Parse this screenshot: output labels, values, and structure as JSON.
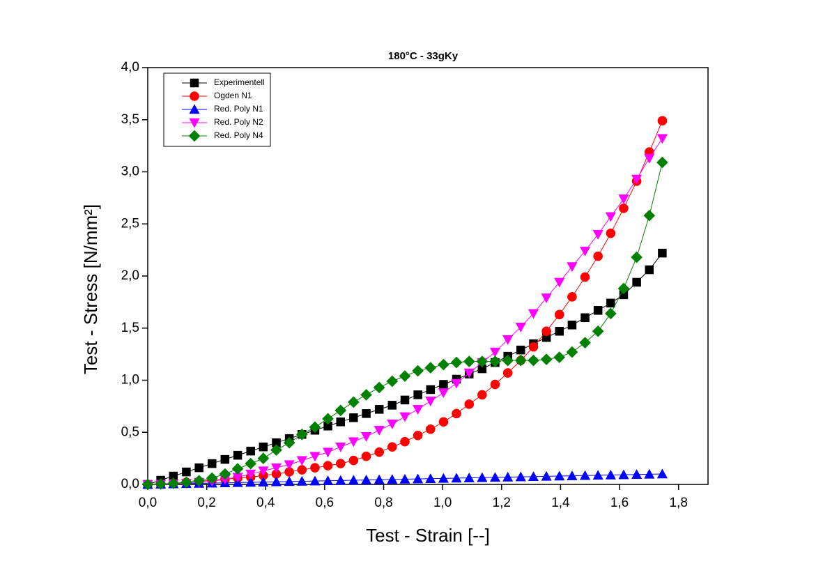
{
  "chart_data": {
    "type": "line",
    "title": "180°C - 33gKy",
    "x_label": "Test - Strain [--]",
    "y_label": "Test - Stress [N/mm²]",
    "xlim": [
      0,
      1.9
    ],
    "ylim": [
      0,
      4.0
    ],
    "xticks": [
      {
        "value": 0,
        "label": "0,0"
      },
      {
        "value": 0.2,
        "label": "0,2"
      },
      {
        "value": 0.4,
        "label": "0,4"
      },
      {
        "value": 0.6,
        "label": "0,6"
      },
      {
        "value": 0.8,
        "label": "0,8"
      },
      {
        "value": 1.0,
        "label": "1,0"
      },
      {
        "value": 1.2,
        "label": "1,2"
      },
      {
        "value": 1.4,
        "label": "1,4"
      },
      {
        "value": 1.6,
        "label": "1,6"
      },
      {
        "value": 1.8,
        "label": "1,8"
      }
    ],
    "yticks": [
      {
        "value": 0,
        "label": "0,0"
      },
      {
        "value": 0.5,
        "label": "0,5"
      },
      {
        "value": 1.0,
        "label": "1,0"
      },
      {
        "value": 1.5,
        "label": "1,5"
      },
      {
        "value": 2.0,
        "label": "2,0"
      },
      {
        "value": 2.5,
        "label": "2,5"
      },
      {
        "value": 3.0,
        "label": "3,0"
      },
      {
        "value": 3.5,
        "label": "3,5"
      },
      {
        "value": 4.0,
        "label": "4,0"
      }
    ],
    "legend": "upper left",
    "x": [
      0,
      0.044,
      0.087,
      0.131,
      0.174,
      0.218,
      0.262,
      0.305,
      0.349,
      0.392,
      0.436,
      0.48,
      0.523,
      0.567,
      0.611,
      0.654,
      0.698,
      0.741,
      0.785,
      0.829,
      0.872,
      0.916,
      0.959,
      1.003,
      1.047,
      1.09,
      1.134,
      1.178,
      1.221,
      1.265,
      1.308,
      1.352,
      1.396,
      1.439,
      1.483,
      1.527,
      1.57,
      1.614,
      1.658,
      1.701,
      1.745
    ],
    "series": [
      {
        "name": "Experimentell",
        "color": "#000000",
        "marker": "square",
        "values": [
          0,
          0.04,
          0.08,
          0.12,
          0.16,
          0.2,
          0.24,
          0.28,
          0.32,
          0.36,
          0.4,
          0.44,
          0.48,
          0.52,
          0.56,
          0.6,
          0.64,
          0.68,
          0.72,
          0.76,
          0.81,
          0.86,
          0.91,
          0.96,
          1.01,
          1.06,
          1.11,
          1.17,
          1.23,
          1.29,
          1.35,
          1.41,
          1.47,
          1.53,
          1.6,
          1.67,
          1.74,
          1.82,
          1.94,
          2.06,
          2.22
        ]
      },
      {
        "name": "Ogden N1",
        "color": "#ff0000",
        "marker": "circle",
        "values": [
          0,
          0.003,
          0.01,
          0.02,
          0.03,
          0.04,
          0.05,
          0.06,
          0.07,
          0.085,
          0.1,
          0.12,
          0.14,
          0.16,
          0.18,
          0.2,
          0.23,
          0.27,
          0.31,
          0.36,
          0.41,
          0.47,
          0.53,
          0.6,
          0.68,
          0.77,
          0.86,
          0.96,
          1.07,
          1.19,
          1.32,
          1.47,
          1.63,
          1.8,
          1.99,
          2.19,
          2.41,
          2.65,
          2.91,
          3.19,
          3.49
        ]
      },
      {
        "name": "Red. Poly N1",
        "color": "#0000ff",
        "marker": "triangle-up",
        "values": [
          0,
          0.0025,
          0.005,
          0.0075,
          0.01,
          0.0125,
          0.015,
          0.0175,
          0.02,
          0.0225,
          0.025,
          0.0275,
          0.03,
          0.0325,
          0.035,
          0.0375,
          0.04,
          0.0425,
          0.045,
          0.0475,
          0.05,
          0.0525,
          0.055,
          0.0575,
          0.06,
          0.0625,
          0.065,
          0.0675,
          0.07,
          0.0725,
          0.075,
          0.0775,
          0.08,
          0.0825,
          0.085,
          0.0875,
          0.09,
          0.0925,
          0.095,
          0.0975,
          0.1
        ]
      },
      {
        "name": "Red. Poly N2",
        "color": "#ff00ff",
        "marker": "triangle-down",
        "values": [
          0,
          0.002,
          0.005,
          0.01,
          0.02,
          0.03,
          0.05,
          0.07,
          0.1,
          0.13,
          0.16,
          0.19,
          0.23,
          0.27,
          0.31,
          0.36,
          0.41,
          0.46,
          0.52,
          0.58,
          0.65,
          0.72,
          0.8,
          0.88,
          0.97,
          1.07,
          1.17,
          1.27,
          1.39,
          1.51,
          1.64,
          1.79,
          1.94,
          2.09,
          2.24,
          2.4,
          2.57,
          2.74,
          2.93,
          3.13,
          3.32
        ]
      },
      {
        "name": "Red. Poly N4",
        "color": "#008000",
        "marker": "diamond",
        "values": [
          0,
          0.004,
          0.01,
          0.02,
          0.035,
          0.06,
          0.1,
          0.15,
          0.2,
          0.25,
          0.33,
          0.4,
          0.48,
          0.55,
          0.63,
          0.71,
          0.79,
          0.86,
          0.93,
          0.99,
          1.04,
          1.09,
          1.12,
          1.15,
          1.17,
          1.18,
          1.18,
          1.18,
          1.19,
          1.19,
          1.19,
          1.2,
          1.22,
          1.27,
          1.36,
          1.47,
          1.64,
          1.88,
          2.18,
          2.58,
          3.09
        ]
      }
    ]
  }
}
